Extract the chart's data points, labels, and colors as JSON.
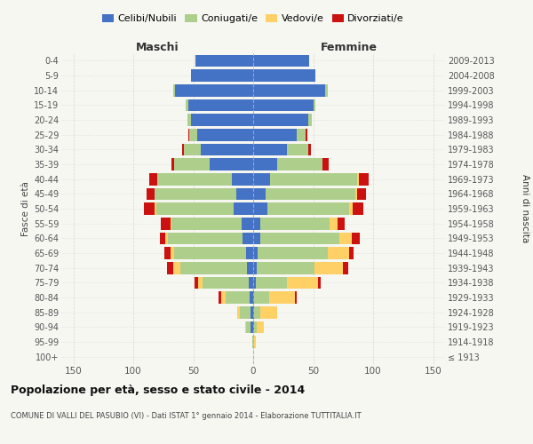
{
  "age_groups": [
    "100+",
    "95-99",
    "90-94",
    "85-89",
    "80-84",
    "75-79",
    "70-74",
    "65-69",
    "60-64",
    "55-59",
    "50-54",
    "45-49",
    "40-44",
    "35-39",
    "30-34",
    "25-29",
    "20-24",
    "15-19",
    "10-14",
    "5-9",
    "0-4"
  ],
  "birth_years": [
    "≤ 1913",
    "1914-1918",
    "1919-1923",
    "1924-1928",
    "1929-1933",
    "1934-1938",
    "1939-1943",
    "1944-1948",
    "1949-1953",
    "1954-1958",
    "1959-1963",
    "1964-1968",
    "1969-1973",
    "1974-1978",
    "1979-1983",
    "1984-1988",
    "1989-1993",
    "1994-1998",
    "1999-2003",
    "2004-2008",
    "2009-2013"
  ],
  "male_celibi": [
    0,
    0,
    2,
    2,
    3,
    4,
    5,
    6,
    9,
    10,
    16,
    14,
    18,
    36,
    44,
    47,
    52,
    54,
    65,
    52,
    48
  ],
  "male_coniugati": [
    0,
    1,
    4,
    9,
    20,
    38,
    56,
    60,
    62,
    58,
    65,
    68,
    62,
    30,
    14,
    6,
    3,
    2,
    2,
    0,
    0
  ],
  "male_vedovi": [
    0,
    0,
    1,
    2,
    4,
    4,
    6,
    3,
    2,
    1,
    1,
    0,
    0,
    0,
    0,
    0,
    0,
    0,
    0,
    0,
    0
  ],
  "male_divorziati": [
    0,
    0,
    0,
    0,
    2,
    3,
    5,
    5,
    5,
    8,
    9,
    7,
    7,
    2,
    1,
    1,
    0,
    0,
    0,
    0,
    0
  ],
  "female_nubili": [
    0,
    0,
    1,
    1,
    1,
    2,
    3,
    4,
    6,
    6,
    12,
    10,
    14,
    20,
    28,
    36,
    46,
    50,
    60,
    52,
    47
  ],
  "female_coniugate": [
    0,
    0,
    2,
    5,
    12,
    26,
    48,
    58,
    66,
    58,
    68,
    75,
    73,
    38,
    18,
    8,
    3,
    2,
    2,
    0,
    0
  ],
  "female_vedove": [
    0,
    2,
    6,
    14,
    22,
    26,
    24,
    18,
    10,
    6,
    3,
    2,
    1,
    0,
    0,
    0,
    0,
    0,
    0,
    0,
    0
  ],
  "female_divorziate": [
    0,
    0,
    0,
    0,
    1,
    2,
    4,
    4,
    7,
    6,
    9,
    7,
    8,
    5,
    2,
    1,
    0,
    0,
    0,
    0,
    0
  ],
  "colors": {
    "celibi": "#4472C4",
    "coniugati": "#AECF8B",
    "vedovi": "#FFD066",
    "divorziati": "#CC1111"
  },
  "title1": "Popolazione per età, sesso e stato civile - 2014",
  "title2": "COMUNE DI VALLI DEL PASUBIO (VI) - Dati ISTAT 1° gennaio 2014 - Elaborazione TUTTITALIA.IT",
  "xlim": 160,
  "bg_color": "#F7F7F2"
}
